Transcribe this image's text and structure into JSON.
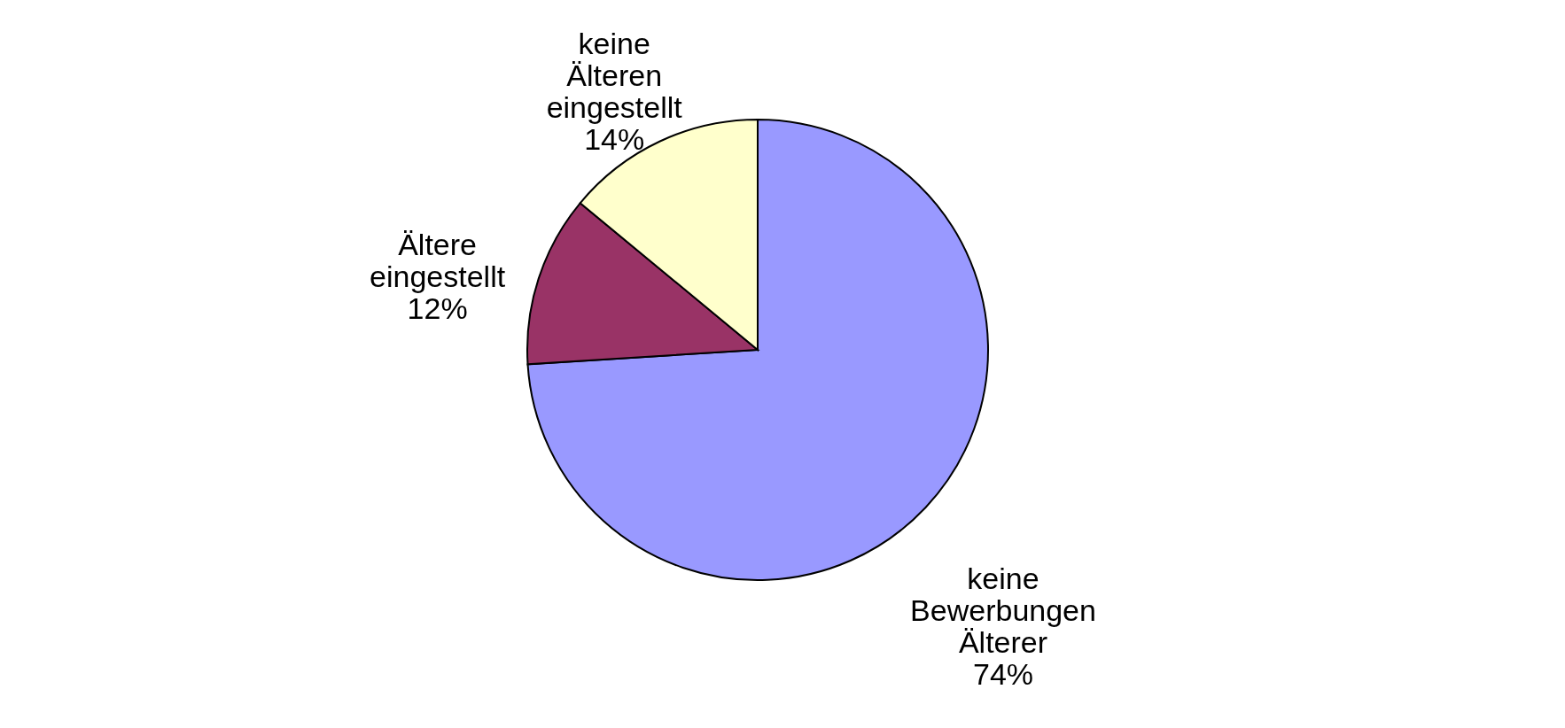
{
  "chart_data": {
    "type": "pie",
    "categories": [
      "keine Bewerbungen Älterer",
      "Ältere eingestellt",
      "keine Älteren eingestellt"
    ],
    "values": [
      74,
      12,
      14
    ],
    "colors": [
      "#9999ff",
      "#993366",
      "#ffffcc"
    ],
    "value_labels": [
      "74%",
      "12%",
      "14%"
    ]
  }
}
